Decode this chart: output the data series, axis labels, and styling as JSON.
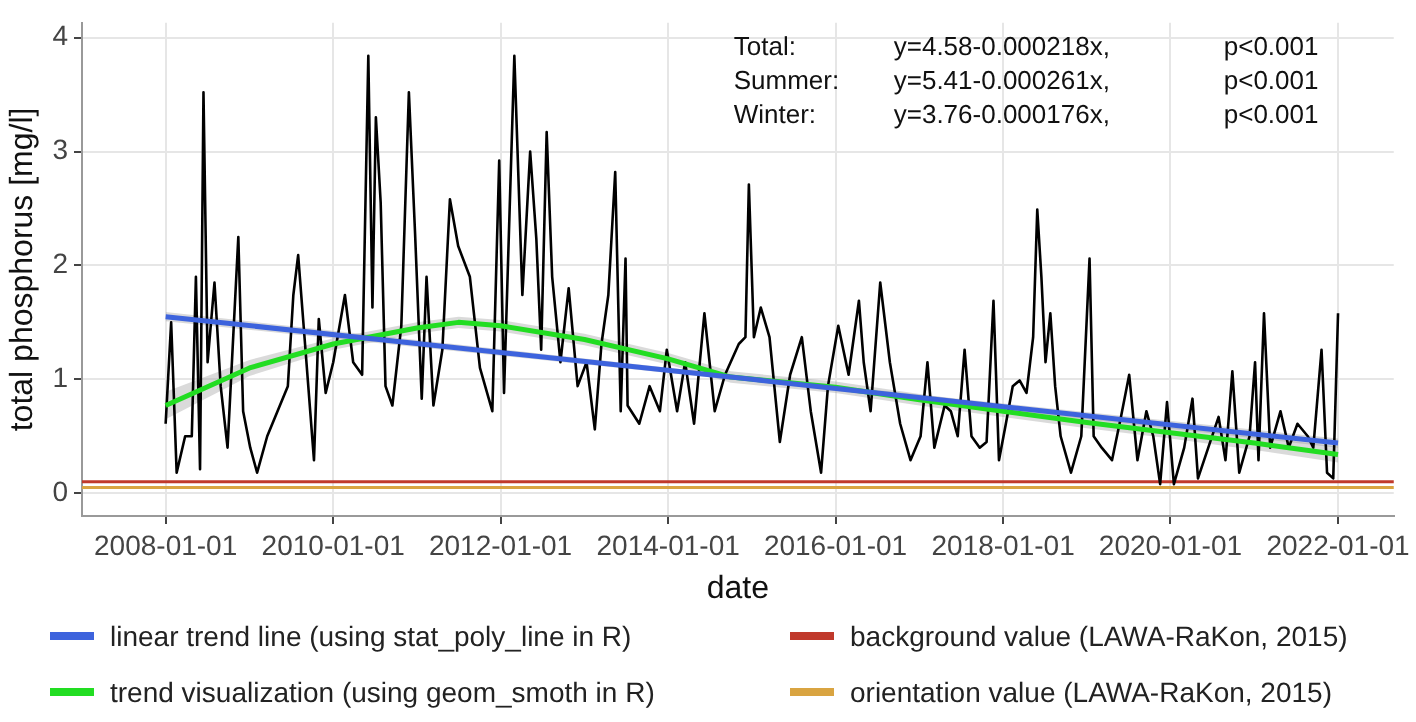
{
  "chart_data": {
    "type": "line",
    "xlabel": "date",
    "ylabel": "total phosphorus [mg/l]",
    "xlim": [
      "2007-01-01",
      "2022-09-01"
    ],
    "xticks": [
      "2008-01-01",
      "2010-01-01",
      "2012-01-01",
      "2014-01-01",
      "2016-01-01",
      "2018-01-01",
      "2020-01-01",
      "2022-01-01"
    ],
    "ylim": [
      -0.2,
      4.13
    ],
    "yticks": [
      0,
      1,
      2,
      3,
      4
    ],
    "grid": true,
    "legend": "bottom",
    "marker": "none",
    "line_style": "solid",
    "annotations": [
      "Total:",
      "y=4.58-0.000218x,",
      "p<0.001",
      "Summer:",
      "y=5.41-0.000261x,",
      "p<0.001",
      "Winter:",
      "y=3.76-0.000176x,",
      "p<0.001"
    ],
    "ref_lines": [
      {
        "axis": "y",
        "value": 0.1,
        "label": "background value (LAWA-RaKon, 2015)",
        "color": "#c0392b"
      },
      {
        "axis": "y",
        "value": 0.05,
        "label": "orientation value (LAWA-RaKon, 2015)",
        "color": "#d9a441"
      }
    ],
    "series": [
      {
        "color": "#000000",
        "x": [
          "2008-01-01",
          "2008-01-25",
          "2008-02-18",
          "2008-03-26",
          "2008-04-24",
          "2008-05-12",
          "2008-05-30",
          "2008-06-14",
          "2008-07-02",
          "2008-08-01",
          "2008-08-28",
          "2008-09-27",
          "2008-11-13",
          "2008-12-04",
          "2009-01-04",
          "2009-02-03",
          "2009-03-19",
          "2009-05-03",
          "2009-06-17",
          "2009-07-11",
          "2009-08-01",
          "2009-08-31",
          "2009-10-09",
          "2009-10-30",
          "2009-11-29",
          "2010-01-01",
          "2010-02-21",
          "2010-03-29",
          "2010-05-07",
          "2010-06-03",
          "2010-06-21",
          "2010-07-06",
          "2010-07-27",
          "2010-08-17",
          "2010-09-16",
          "2010-10-25",
          "2010-11-27",
          "2010-12-24",
          "2011-01-22",
          "2011-02-12",
          "2011-03-14",
          "2011-04-22",
          "2011-05-25",
          "2011-06-30",
          "2011-08-20",
          "2011-10-03",
          "2011-11-26",
          "2011-12-26",
          "2012-01-16",
          "2012-03-01",
          "2012-04-05",
          "2012-05-09",
          "2012-06-05",
          "2012-06-26",
          "2012-07-20",
          "2012-08-13",
          "2012-09-18",
          "2012-10-24",
          "2012-12-02",
          "2013-01-10",
          "2013-02-15",
          "2013-03-16",
          "2013-04-15",
          "2013-05-15",
          "2013-06-08",
          "2013-06-29",
          "2013-07-08",
          "2013-08-28",
          "2013-10-12",
          "2013-11-26",
          "2013-12-26",
          "2014-02-09",
          "2014-03-16",
          "2014-04-24",
          "2014-06-08",
          "2014-07-23",
          "2014-09-06",
          "2014-11-05",
          "2014-12-04",
          "2014-12-19",
          "2015-01-10",
          "2015-02-09",
          "2015-03-19",
          "2015-05-03",
          "2015-06-17",
          "2015-08-07",
          "2015-09-15",
          "2015-10-30",
          "2015-11-29",
          "2016-01-13",
          "2016-02-27",
          "2016-04-12",
          "2016-05-03",
          "2016-06-02",
          "2016-07-14",
          "2016-08-25",
          "2016-10-09",
          "2016-11-23",
          "2017-01-06",
          "2017-02-05",
          "2017-03-07",
          "2017-04-21",
          "2017-05-18",
          "2017-06-17",
          "2017-07-17",
          "2017-08-16",
          "2017-09-21",
          "2017-10-21",
          "2017-11-20",
          "2017-12-14",
          "2018-01-13",
          "2018-02-12",
          "2018-03-14",
          "2018-04-13",
          "2018-05-12",
          "2018-05-30",
          "2018-06-17",
          "2018-07-05",
          "2018-07-26",
          "2018-08-16",
          "2018-09-09",
          "2018-10-24",
          "2018-12-08",
          "2019-01-13",
          "2019-01-31",
          "2019-03-07",
          "2019-04-21",
          "2019-05-30",
          "2019-07-05",
          "2019-08-10",
          "2019-09-18",
          "2019-10-18",
          "2019-11-17",
          "2019-12-17",
          "2020-01-16",
          "2020-03-01",
          "2020-04-06",
          "2020-04-30",
          "2020-06-14",
          "2020-07-29",
          "2020-08-28",
          "2020-09-27",
          "2020-10-27",
          "2020-12-11",
          "2021-01-04",
          "2021-01-19",
          "2021-02-12",
          "2021-03-11",
          "2021-04-25",
          "2021-05-31",
          "2021-07-08",
          "2021-08-22",
          "2021-09-15",
          "2021-10-21",
          "2021-11-14",
          "2021-12-11",
          "2022-01-01"
        ],
        "values": [
          0.61,
          1.5,
          0.18,
          0.5,
          0.5,
          1.9,
          0.21,
          3.52,
          1.15,
          1.85,
          0.94,
          0.4,
          2.25,
          0.72,
          0.4,
          0.18,
          0.5,
          0.72,
          0.94,
          1.74,
          2.09,
          1.31,
          0.29,
          1.53,
          0.88,
          1.15,
          1.74,
          1.15,
          1.04,
          3.84,
          1.63,
          3.3,
          2.55,
          0.94,
          0.77,
          1.47,
          3.52,
          2.28,
          0.83,
          1.9,
          0.77,
          1.26,
          2.58,
          2.17,
          1.9,
          1.1,
          0.72,
          2.92,
          0.88,
          3.84,
          1.74,
          3.0,
          2.23,
          1.26,
          3.17,
          1.9,
          1.15,
          1.8,
          0.94,
          1.15,
          0.56,
          1.31,
          1.74,
          2.82,
          0.72,
          2.06,
          0.77,
          0.61,
          0.94,
          0.72,
          1.26,
          0.72,
          1.15,
          0.61,
          1.58,
          0.72,
          1.04,
          1.31,
          1.37,
          2.71,
          1.37,
          1.63,
          1.37,
          0.45,
          1.04,
          1.37,
          0.72,
          0.18,
          0.94,
          1.47,
          1.04,
          1.69,
          1.15,
          0.72,
          1.85,
          1.15,
          0.61,
          0.29,
          0.5,
          1.15,
          0.4,
          0.77,
          0.72,
          0.5,
          1.26,
          0.5,
          0.4,
          0.45,
          1.69,
          0.29,
          0.61,
          0.94,
          0.99,
          0.88,
          1.37,
          2.49,
          1.9,
          1.15,
          1.58,
          0.94,
          0.5,
          0.18,
          0.5,
          2.06,
          0.5,
          0.4,
          0.29,
          0.67,
          1.04,
          0.29,
          0.72,
          0.5,
          0.08,
          0.8,
          0.08,
          0.4,
          0.83,
          0.13,
          0.4,
          0.67,
          0.29,
          1.07,
          0.18,
          0.5,
          1.15,
          0.29,
          1.58,
          0.4,
          0.72,
          0.4,
          0.61,
          0.5,
          0.4,
          1.26,
          0.18,
          0.13,
          1.58
        ]
      },
      {
        "name": "linear trend line (using stat_poly_line in R)",
        "color": "#3d63dd",
        "x": [
          "2008-01-01",
          "2015-01-01",
          "2022-01-01"
        ],
        "values": [
          1.55,
          1.0,
          0.44
        ],
        "lower": [
          1.51,
          0.98,
          0.4
        ],
        "upper": [
          1.59,
          1.02,
          0.48
        ]
      },
      {
        "name": "trend visualization (using geom_smoth in R)",
        "color": "#22dd22",
        "x": [
          "2008-01-01",
          "2009-01-01",
          "2010-01-01",
          "2011-01-01",
          "2011-07-01",
          "2012-01-01",
          "2013-01-01",
          "2014-01-01",
          "2014-10-01",
          "2016-01-01",
          "2017-01-01",
          "2018-01-01",
          "2019-01-01",
          "2020-01-01",
          "2021-01-01",
          "2022-01-01"
        ],
        "values": [
          0.77,
          1.1,
          1.31,
          1.45,
          1.5,
          1.47,
          1.35,
          1.18,
          1.02,
          0.93,
          0.82,
          0.72,
          0.62,
          0.53,
          0.44,
          0.34
        ],
        "lower": [
          0.65,
          1.03,
          1.26,
          1.4,
          1.45,
          1.42,
          1.3,
          1.13,
          0.97,
          0.88,
          0.77,
          0.67,
          0.57,
          0.48,
          0.38,
          0.27
        ],
        "upper": [
          0.89,
          1.17,
          1.36,
          1.5,
          1.55,
          1.52,
          1.4,
          1.23,
          1.07,
          0.98,
          0.87,
          0.77,
          0.67,
          0.58,
          0.5,
          0.41
        ]
      }
    ]
  }
}
